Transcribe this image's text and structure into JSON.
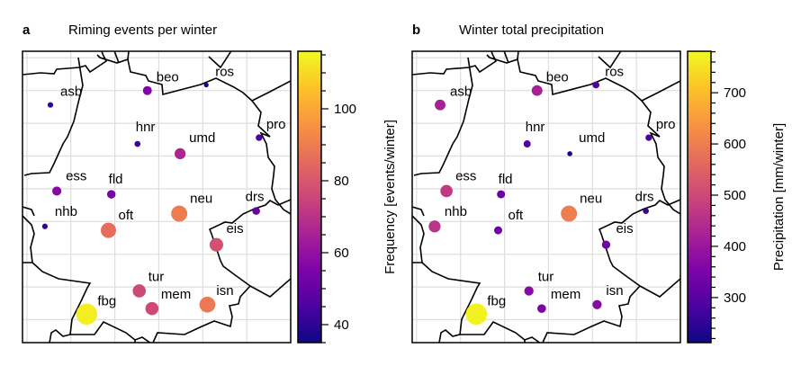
{
  "chart_data": [
    {
      "type": "scatter",
      "panel_letter": "a",
      "title": "Riming events per winter",
      "colorbar": {
        "label": "Frequency [events/winter]",
        "range": [
          35,
          116
        ],
        "ticks": [
          40,
          60,
          80,
          100
        ],
        "tick_labels": [
          "40",
          "60",
          "80",
          "100"
        ],
        "minor_tick_step": 5,
        "colormap": "plasma"
      },
      "xlim_lon": [
        4.8,
        17.0
      ],
      "ylim_lat": [
        46.3,
        55.2
      ],
      "grid": true,
      "points": [
        {
          "name": "asb",
          "lon": 6.07,
          "lat": 53.56,
          "value": 40
        },
        {
          "name": "beo",
          "lon": 10.48,
          "lat": 54.0,
          "value": 56
        },
        {
          "name": "ros",
          "lon": 13.16,
          "lat": 54.17,
          "value": 36
        },
        {
          "name": "hnr",
          "lon": 10.03,
          "lat": 52.37,
          "value": 42
        },
        {
          "name": "umd",
          "lon": 11.97,
          "lat": 52.07,
          "value": 66
        },
        {
          "name": "pro",
          "lon": 15.56,
          "lat": 52.56,
          "value": 45
        },
        {
          "name": "ess",
          "lon": 6.36,
          "lat": 50.93,
          "value": 57
        },
        {
          "name": "fld",
          "lon": 8.84,
          "lat": 50.83,
          "value": 54
        },
        {
          "name": "drs",
          "lon": 15.43,
          "lat": 50.32,
          "value": 50
        },
        {
          "name": "nhb",
          "lon": 5.82,
          "lat": 49.85,
          "value": 40
        },
        {
          "name": "neu",
          "lon": 11.93,
          "lat": 50.24,
          "value": 90
        },
        {
          "name": "oft",
          "lon": 8.71,
          "lat": 49.73,
          "value": 86
        },
        {
          "name": "eis",
          "lon": 13.62,
          "lat": 49.29,
          "value": 78
        },
        {
          "name": "tur",
          "lon": 10.11,
          "lat": 47.88,
          "value": 76
        },
        {
          "name": "mem",
          "lon": 10.69,
          "lat": 47.34,
          "value": 76
        },
        {
          "name": "isn",
          "lon": 13.21,
          "lat": 47.46,
          "value": 89
        },
        {
          "name": "fbg",
          "lon": 7.72,
          "lat": 47.17,
          "value": 114
        }
      ]
    },
    {
      "type": "scatter",
      "panel_letter": "b",
      "title": "Winter total precipitation",
      "colorbar": {
        "label": "Precipitation [mm/winter]",
        "range": [
          212,
          781
        ],
        "ticks": [
          300,
          400,
          500,
          600,
          700
        ],
        "tick_labels": [
          "300",
          "400",
          "500",
          "600",
          "700"
        ],
        "minor_tick_step": 20,
        "colormap": "plasma"
      },
      "xlim_lon": [
        4.8,
        17.0
      ],
      "ylim_lat": [
        46.3,
        55.2
      ],
      "grid": true,
      "points": [
        {
          "name": "asb",
          "lon": 6.07,
          "lat": 53.56,
          "value": 420
        },
        {
          "name": "beo",
          "lon": 10.48,
          "lat": 54.0,
          "value": 420
        },
        {
          "name": "ros",
          "lon": 13.16,
          "lat": 54.17,
          "value": 290
        },
        {
          "name": "hnr",
          "lon": 10.03,
          "lat": 52.37,
          "value": 300
        },
        {
          "name": "umd",
          "lon": 11.97,
          "lat": 52.07,
          "value": 230
        },
        {
          "name": "pro",
          "lon": 15.56,
          "lat": 52.56,
          "value": 280
        },
        {
          "name": "ess",
          "lon": 6.36,
          "lat": 50.93,
          "value": 470
        },
        {
          "name": "fld",
          "lon": 8.84,
          "lat": 50.83,
          "value": 330
        },
        {
          "name": "drs",
          "lon": 15.43,
          "lat": 50.32,
          "value": 260
        },
        {
          "name": "nhb",
          "lon": 5.82,
          "lat": 49.85,
          "value": 460
        },
        {
          "name": "neu",
          "lon": 11.93,
          "lat": 50.24,
          "value": 600
        },
        {
          "name": "oft",
          "lon": 8.71,
          "lat": 49.73,
          "value": 330
        },
        {
          "name": "eis",
          "lon": 13.62,
          "lat": 49.29,
          "value": 340
        },
        {
          "name": "tur",
          "lon": 10.11,
          "lat": 47.88,
          "value": 370
        },
        {
          "name": "mem",
          "lon": 10.69,
          "lat": 47.34,
          "value": 350
        },
        {
          "name": "isn",
          "lon": 13.21,
          "lat": 47.46,
          "value": 370
        },
        {
          "name": "fbg",
          "lon": 7.72,
          "lat": 47.17,
          "value": 770
        }
      ]
    }
  ]
}
